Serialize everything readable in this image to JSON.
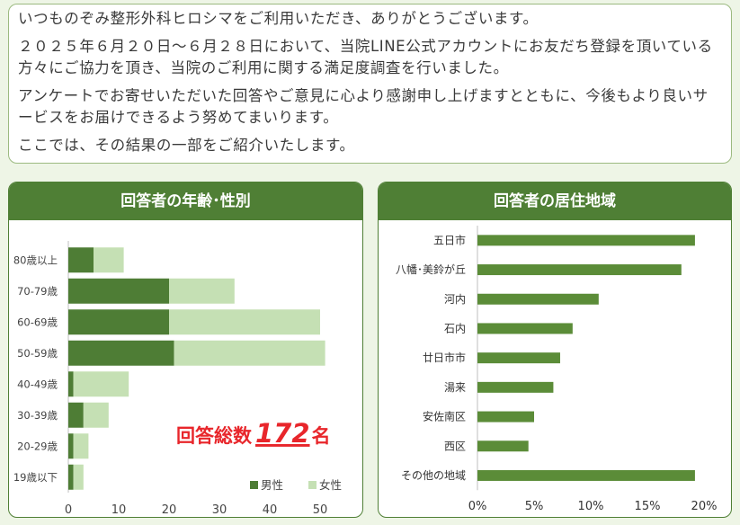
{
  "intro": {
    "p1": "いつものぞみ整形外科ヒロシマをご利用いただき、ありがとうございます。",
    "p2": "２０２５年６月２０日～６月２８日において、当院LINE公式アカウントにお友だち登録を頂いている方々にご協力を頂き、当院のご利用に関する満足度調査を行いました。",
    "p3": "アンケートでお寄せいただいた回答やご意見に心より感謝申し上げますとともに、今後もより良いサービスをお届けできるよう努めてまいります。",
    "p4": "ここでは、その結果の一部をご紹介いたします。"
  },
  "colors": {
    "male": "#4e7d35",
    "female": "#c5e0b4",
    "bar": "#5b8c38",
    "accent": "#e8262b"
  },
  "chart_data": [
    {
      "type": "bar",
      "orientation": "horizontal",
      "stacked": true,
      "title": "回答者の年齢･性別",
      "categories": [
        "80歳以上",
        "70-79歳",
        "60-69歳",
        "50-59歳",
        "40-49歳",
        "30-39歳",
        "20-29歳",
        "19歳以下"
      ],
      "series": [
        {
          "name": "男性",
          "values": [
            5,
            20,
            20,
            21,
            1,
            3,
            1,
            1
          ]
        },
        {
          "name": "女性",
          "values": [
            6,
            13,
            30,
            30,
            11,
            5,
            3,
            2
          ]
        }
      ],
      "xlim": [
        0,
        55
      ],
      "xticks": [
        "0",
        "10",
        "20",
        "30",
        "40",
        "50"
      ],
      "legend": "bottom-right",
      "annotation": {
        "label": "回答総数",
        "number": "172",
        "unit": "名"
      }
    },
    {
      "type": "bar",
      "orientation": "horizontal",
      "title": "回答者の居住地域",
      "categories": [
        "五日市",
        "八幡･美鈴が丘",
        "河内",
        "石内",
        "廿日市市",
        "湯来",
        "安佐南区",
        "西区",
        "その他の地域"
      ],
      "values": [
        19.2,
        18.0,
        10.7,
        8.4,
        7.3,
        6.7,
        5.0,
        4.5,
        19.2
      ],
      "xlim": [
        0,
        20
      ],
      "xticks": [
        "0%",
        "5%",
        "10%",
        "15%",
        "20%"
      ]
    }
  ]
}
